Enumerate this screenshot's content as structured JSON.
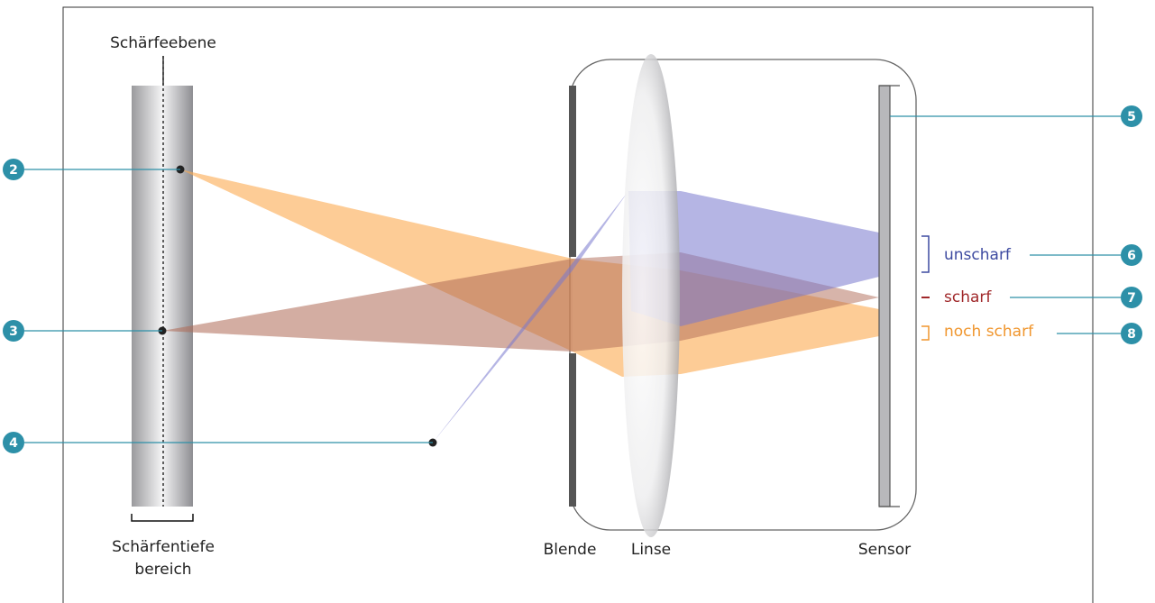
{
  "labels": {
    "focal_plane": "Schärfeebene",
    "dof_line1": "Schärfentiefe",
    "dof_line2": "bereich",
    "aperture": "Blende",
    "lens": "Linse",
    "sensor": "Sensor"
  },
  "legend": [
    {
      "text": "unscharf"
    },
    {
      "text": "scharf"
    },
    {
      "text": "noch scharf"
    }
  ],
  "callouts": [
    "2",
    "3",
    "4",
    "5",
    "6",
    "7",
    "8"
  ]
}
